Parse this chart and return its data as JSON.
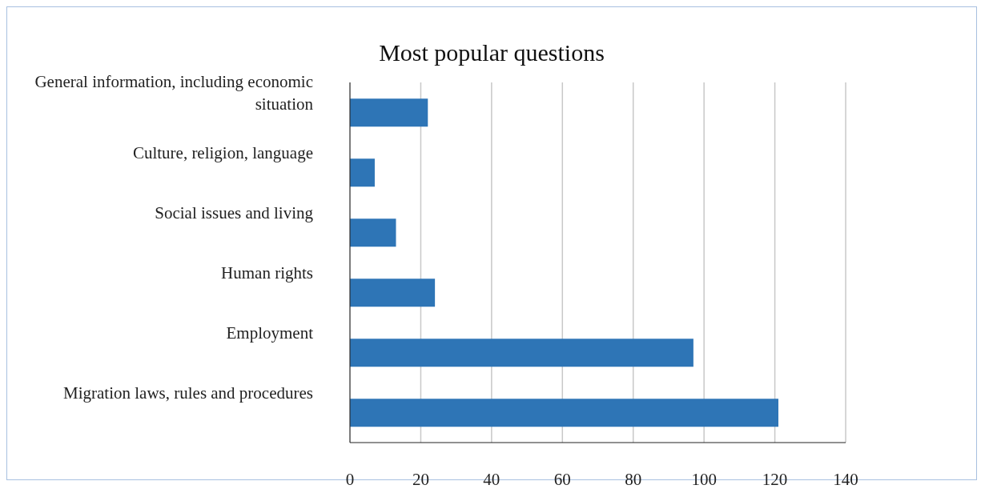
{
  "chart_data": {
    "type": "bar",
    "orientation": "horizontal",
    "title": "Most popular questions",
    "categories": [
      "General information, including economic situation",
      "Culture, religion, language",
      "Social issues and living",
      "Human rights",
      "Employment",
      "Migration laws, rules and procedures"
    ],
    "values": [
      22,
      7,
      13,
      24,
      97,
      121
    ],
    "color": "#2e75b6",
    "xlim": [
      0,
      140
    ],
    "xticks": [
      0,
      20,
      40,
      60,
      80,
      100,
      120,
      140
    ],
    "grid": "x",
    "legend": false
  }
}
